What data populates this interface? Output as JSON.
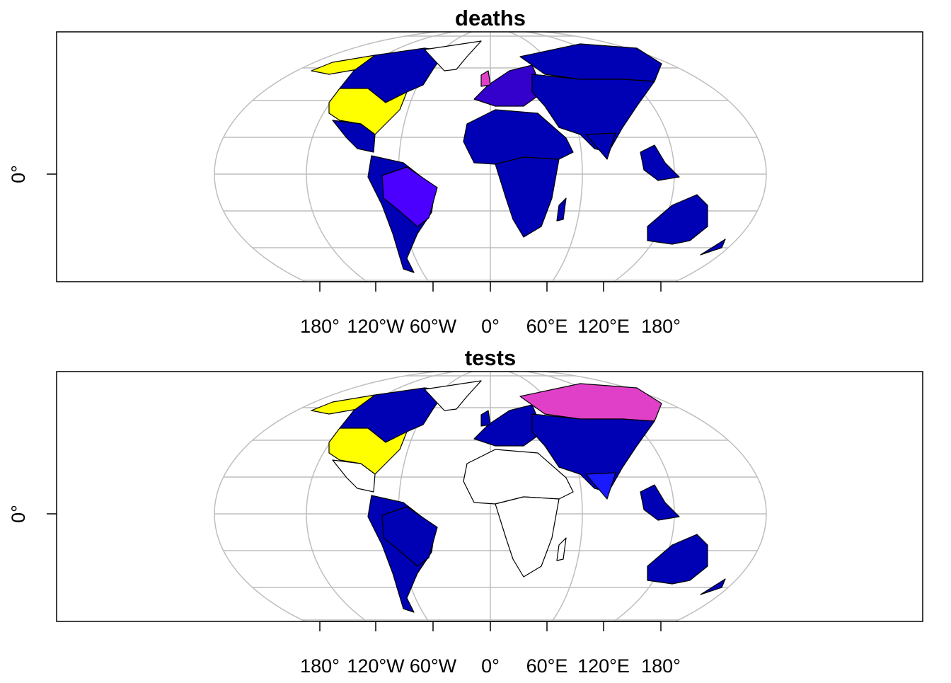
{
  "panels": [
    {
      "title": "deaths",
      "x_tick_labels": [
        "180°",
        "120°W",
        "60°W",
        "0°",
        "60°E",
        "120°E",
        "180°"
      ],
      "y_tick_label": "0°"
    },
    {
      "title": "tests",
      "x_tick_labels": [
        "180°",
        "120°W",
        "60°W",
        "0°",
        "60°E",
        "120°E",
        "180°"
      ],
      "y_tick_label": "0°"
    }
  ]
}
